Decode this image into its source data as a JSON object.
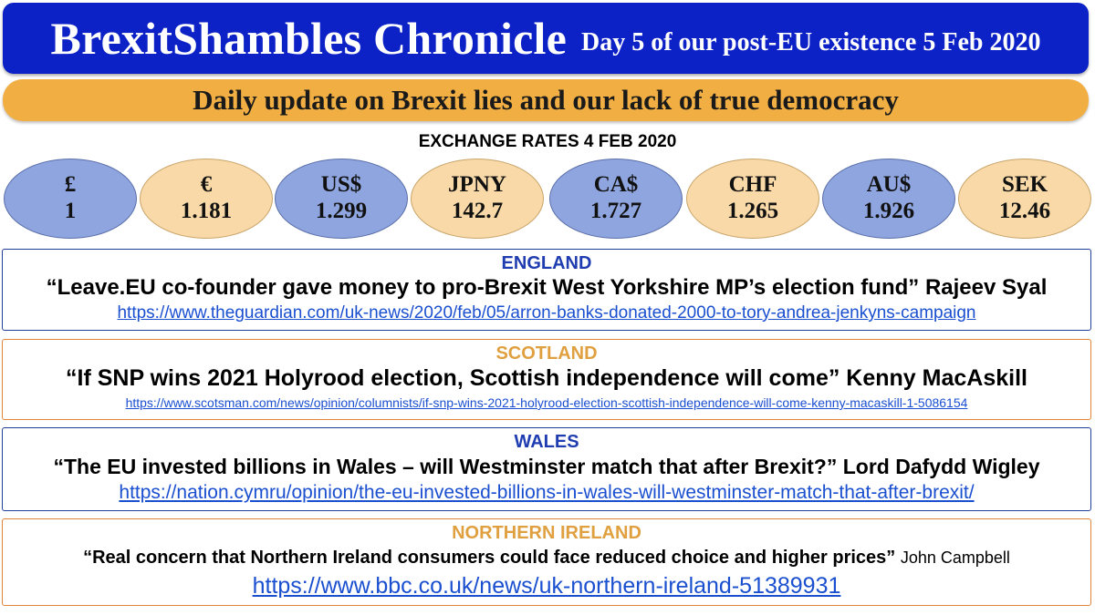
{
  "header": {
    "title": "BrexitShambles Chronicle",
    "subtitle": "Day 5 of our post-EU existence 5 Feb 2020"
  },
  "banner": {
    "text": "Daily update on Brexit lies and our lack of true democracy"
  },
  "exchange_rates": {
    "title": "EXCHANGE RATES 4 FEB 2020",
    "rates": [
      {
        "currency": "£",
        "value": "1"
      },
      {
        "currency": "€",
        "value": "1.181"
      },
      {
        "currency": "US$",
        "value": "1.299"
      },
      {
        "currency": "JPNY",
        "value": "142.7"
      },
      {
        "currency": "CA$",
        "value": "1.727"
      },
      {
        "currency": "CHF",
        "value": "1.265"
      },
      {
        "currency": "AU$",
        "value": "1.926"
      },
      {
        "currency": "SEK",
        "value": "12.46"
      }
    ]
  },
  "sections": [
    {
      "region": "ENGLAND",
      "headline": "“Leave.EU co-founder gave money to pro-Brexit West Yorkshire MP’s election fund” Rajeev Syal",
      "link": "https://www.theguardian.com/uk-news/2020/feb/05/arron-banks-donated-2000-to-tory-andrea-jenkyns-campaign"
    },
    {
      "region": "SCOTLAND",
      "headline": "“If SNP wins 2021 Holyrood election, Scottish independence will come” Kenny MacAskill",
      "link": "https://www.scotsman.com/news/opinion/columnists/if-snp-wins-2021-holyrood-election-scottish-independence-will-come-kenny-macaskill-1-5086154"
    },
    {
      "region": "WALES",
      "headline": "“The EU invested billions in Wales – will Westminster match that after Brexit?” Lord Dafydd Wigley",
      "link": "https://nation.cymru/opinion/the-eu-invested-billions-in-wales-will-westminster-match-that-after-brexit/"
    },
    {
      "region": "NORTHERN IRELAND",
      "headline": "“Real concern that Northern Ireland consumers could face reduced choice and higher prices”",
      "author": "John Campbell",
      "link": "https://www.bbc.co.uk/news/uk-northern-ireland-51389931"
    }
  ],
  "colors": {
    "header_blue": "#0d22c6",
    "banner_orange": "#f0ae43",
    "rate_blue": "#8fa5e0",
    "rate_orange": "#f8d9a7",
    "link_blue": "#1a4fd0"
  }
}
